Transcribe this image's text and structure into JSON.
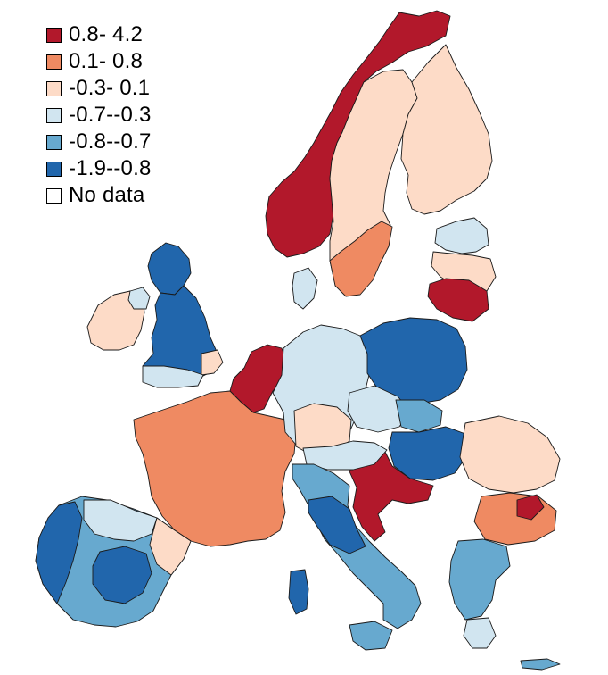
{
  "legend": {
    "items": [
      {
        "label": "0.8- 4.2",
        "color": "#b2182b",
        "class": "c1"
      },
      {
        "label": "0.1- 0.8",
        "color": "#ef8a62",
        "class": "c2"
      },
      {
        "label": "-0.3- 0.1",
        "color": "#fddbc7",
        "class": "c3"
      },
      {
        "label": "-0.7--0.3",
        "color": "#d1e5f0",
        "class": "c4"
      },
      {
        "label": "-0.8--0.7",
        "color": "#67a9cf",
        "class": "c5"
      },
      {
        "label": "-1.9--0.8",
        "color": "#2166ac",
        "class": "c6"
      },
      {
        "label": "No data",
        "color": "#ffffff",
        "class": "c0"
      }
    ]
  },
  "regions": [
    {
      "name": "norway",
      "class": "c1"
    },
    {
      "name": "sweden",
      "class": "c3"
    },
    {
      "name": "finland",
      "class": "c3"
    },
    {
      "name": "baltics",
      "class": "c4"
    },
    {
      "name": "uk",
      "class": "c6"
    },
    {
      "name": "ireland",
      "class": "c3"
    },
    {
      "name": "benelux",
      "class": "c1"
    },
    {
      "name": "france",
      "class": "c2"
    },
    {
      "name": "iberia",
      "class": "c5"
    },
    {
      "name": "germany",
      "class": "c4"
    },
    {
      "name": "poland",
      "class": "c6"
    },
    {
      "name": "italy",
      "class": "c5"
    },
    {
      "name": "balkans",
      "class": "c3"
    },
    {
      "name": "greece",
      "class": "c5"
    },
    {
      "name": "croatia",
      "class": "c1"
    }
  ]
}
